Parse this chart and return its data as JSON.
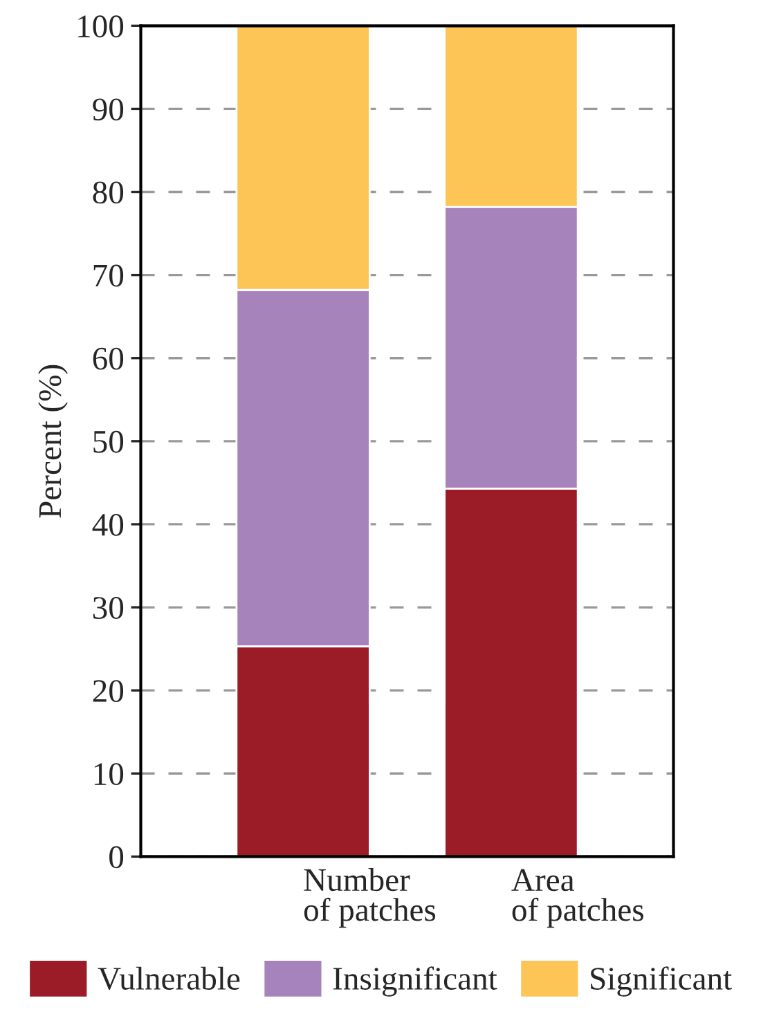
{
  "chart_data": {
    "type": "bar",
    "stacked": true,
    "ylabel": "Percent (%)",
    "categories": [
      "Number\nof patches",
      "Area\nof patches"
    ],
    "series": [
      {
        "name": "Vulnerable",
        "color": "#9b1b27",
        "values": [
          25.3,
          44.3
        ]
      },
      {
        "name": "Insignificant",
        "color": "#a783bb",
        "values": [
          42.9,
          33.9
        ]
      },
      {
        "name": "Significant",
        "color": "#fdc556",
        "values": [
          31.8,
          21.8
        ]
      }
    ],
    "ylim": [
      0,
      100
    ],
    "yticks": [
      0,
      10,
      20,
      30,
      40,
      50,
      60,
      70,
      80,
      90,
      100
    ],
    "grid": "y",
    "legend": "bottom"
  }
}
